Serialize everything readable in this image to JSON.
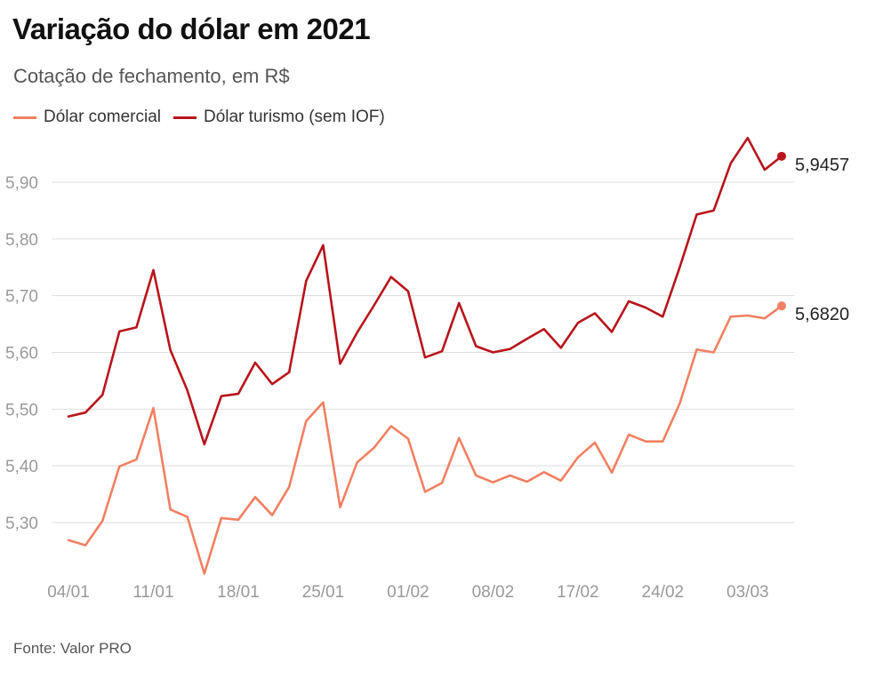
{
  "header": {
    "title": "Variação do dólar em 2021",
    "subtitle": "Cotação de fechamento, em R$"
  },
  "legend": [
    {
      "label": "Dólar comercial",
      "color": "#f08062"
    },
    {
      "label": "Dólar turismo (sem IOF)",
      "color": "#b8141b"
    }
  ],
  "source": "Fonte: Valor PRO",
  "chart_data": {
    "type": "line",
    "title": "Variação do dólar em 2021",
    "subtitle": "Cotação de fechamento, em R$",
    "xlabel": "",
    "ylabel": "",
    "ylim": [
      5.2,
      6.0
    ],
    "yticks": [
      "5,30",
      "5,40",
      "5,50",
      "5,60",
      "5,70",
      "5,80",
      "5,90"
    ],
    "ytick_values": [
      5.3,
      5.4,
      5.5,
      5.6,
      5.7,
      5.8,
      5.9
    ],
    "xtick_labels": [
      "04/01",
      "11/01",
      "18/01",
      "25/01",
      "01/02",
      "08/02",
      "17/02",
      "24/02",
      "03/03"
    ],
    "xtick_index": [
      0,
      5,
      10,
      15,
      20,
      25,
      30,
      35,
      40
    ],
    "grid": true,
    "series": [
      {
        "name": "Dólar turismo (sem IOF)",
        "color": "#b8141b",
        "end_label": "5,9457",
        "values": [
          5.487,
          5.494,
          5.525,
          5.637,
          5.644,
          5.745,
          5.604,
          5.533,
          5.438,
          5.523,
          5.527,
          5.582,
          5.544,
          5.565,
          5.726,
          5.789,
          5.58,
          5.635,
          5.683,
          5.733,
          5.708,
          5.591,
          5.602,
          5.687,
          5.611,
          5.6,
          5.606,
          5.624,
          5.641,
          5.608,
          5.652,
          5.669,
          5.636,
          5.69,
          5.679,
          5.663,
          5.75,
          5.843,
          5.85,
          5.933,
          5.978,
          5.922,
          5.9457
        ]
      },
      {
        "name": "Dólar comercial",
        "color": "#f08062",
        "end_label": "5,6820",
        "values": [
          5.269,
          5.26,
          5.303,
          5.399,
          5.411,
          5.502,
          5.323,
          5.31,
          5.21,
          5.308,
          5.305,
          5.345,
          5.313,
          5.363,
          5.479,
          5.512,
          5.327,
          5.406,
          5.432,
          5.47,
          5.448,
          5.354,
          5.37,
          5.449,
          5.383,
          5.371,
          5.383,
          5.372,
          5.389,
          5.374,
          5.415,
          5.441,
          5.388,
          5.455,
          5.443,
          5.443,
          5.51,
          5.605,
          5.6,
          5.663,
          5.665,
          5.66,
          5.682
        ]
      }
    ]
  }
}
